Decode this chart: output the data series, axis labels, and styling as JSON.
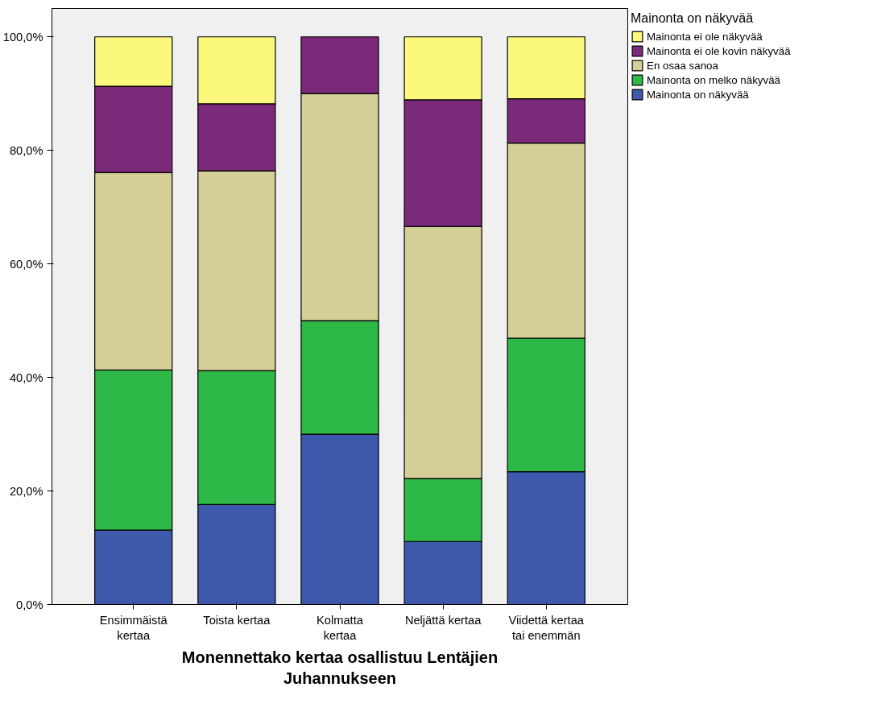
{
  "chart_data": {
    "type": "bar",
    "stacked": true,
    "xlabel": "Monennettako kertaa osallistuu Lentäjien\nJuhannukseen",
    "legend_title": "Mainonta on näkyvää",
    "legend": "top right",
    "grid": false,
    "categories": [
      "Ensimmäistä\nkertaa",
      "Toista kertaa",
      "Kolmatta\nkertaa",
      "Neljättä kertaa",
      "Viidettä kertaa\ntai enemmän"
    ],
    "ylim": [
      0,
      105
    ],
    "yticks": [
      {
        "value": 0,
        "label": "0,0%"
      },
      {
        "value": 20,
        "label": "20,0%"
      },
      {
        "value": 40,
        "label": "40,0%"
      },
      {
        "value": 60,
        "label": "60,0%"
      },
      {
        "value": 80,
        "label": "80,0%"
      },
      {
        "value": 100,
        "label": "100,0%"
      }
    ],
    "series": [
      {
        "name": "Mainonta on näkyvää",
        "color": "#3e58ac",
        "values": [
          13.1,
          17.6,
          30.0,
          11.1,
          23.4
        ]
      },
      {
        "name": "Mainonta on melko näkyvää",
        "color": "#2eb848",
        "values": [
          28.2,
          23.6,
          20.0,
          11.1,
          23.5
        ]
      },
      {
        "name": "En osaa sanoa",
        "color": "#d4cf96",
        "values": [
          34.8,
          35.2,
          40.0,
          44.4,
          34.4
        ]
      },
      {
        "name": "Mainonta ei ole kovin näkyvää",
        "color": "#7b2a7a",
        "values": [
          15.2,
          11.8,
          10.0,
          22.3,
          7.8
        ]
      },
      {
        "name": "Mainonta ei ole näkyvää",
        "color": "#fbf87c",
        "values": [
          8.7,
          11.8,
          0,
          11.1,
          10.9
        ]
      }
    ]
  }
}
